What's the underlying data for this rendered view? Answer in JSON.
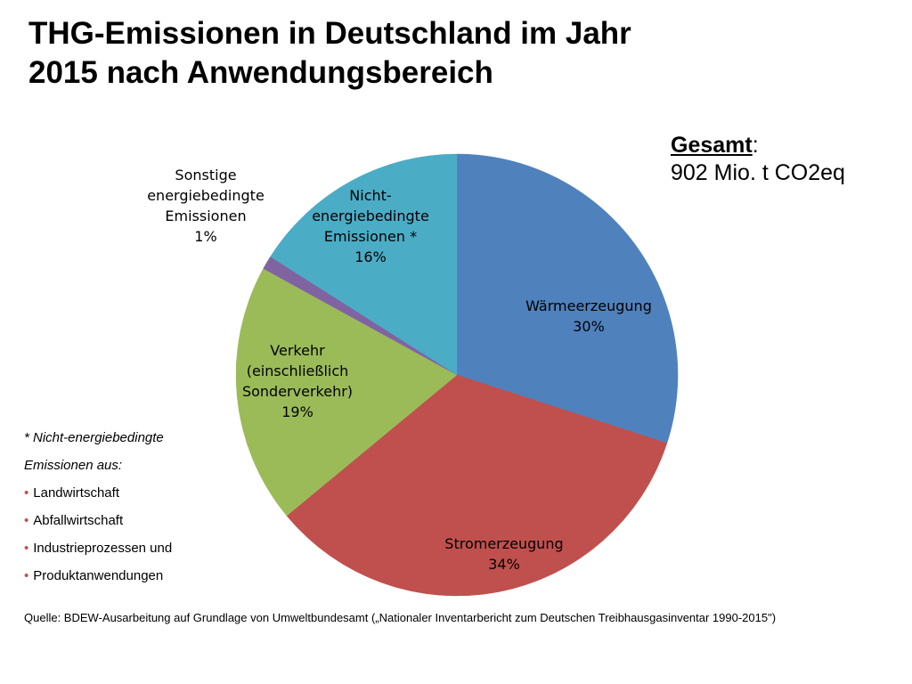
{
  "title": {
    "line1": "THG-Emissionen in Deutschland im Jahr",
    "line2": "2015 nach Anwendungsbereich"
  },
  "total": {
    "label": "Gesamt",
    "colon": ":",
    "value": "902 Mio. t CO2eq"
  },
  "chart_data": {
    "type": "pie",
    "title": "THG-Emissionen in Deutschland im Jahr 2015 nach Anwendungsbereich",
    "start_angle": "12 o'clock",
    "direction": "clockwise",
    "slices": [
      {
        "lines": [
          "Wärmeerzeugung"
        ],
        "percent_label": "30%",
        "value": 30,
        "color": "#4f81bd"
      },
      {
        "lines": [
          "Stromerzeugung"
        ],
        "percent_label": "34%",
        "value": 34,
        "color": "#c0504d"
      },
      {
        "lines": [
          "Verkehr",
          "(einschließlich",
          "Sonderverkehr)"
        ],
        "percent_label": "19%",
        "value": 19,
        "color": "#9bbb59"
      },
      {
        "lines": [
          "Sonstige",
          "energiebedingte",
          "Emissionen"
        ],
        "percent_label": "1%",
        "value": 1,
        "color": "#8064a2"
      },
      {
        "lines": [
          "Nicht-",
          "energiebedingte",
          "Emissionen *"
        ],
        "percent_label": "16%",
        "value": 16,
        "color": "#4bacc6"
      }
    ]
  },
  "footnote": {
    "line1": "* Nicht-energiebedingte",
    "line2": "Emissionen aus:",
    "items": [
      "Landwirtschaft",
      "Abfallwirtschaft",
      "Industrieprozessen und",
      "Produktanwendungen"
    ]
  },
  "source": "Quelle: BDEW-Ausarbeitung auf Grundlage von Umweltbundesamt („Nationaler Inventarbericht zum Deutschen Treibhausgasinventar 1990-2015\")"
}
